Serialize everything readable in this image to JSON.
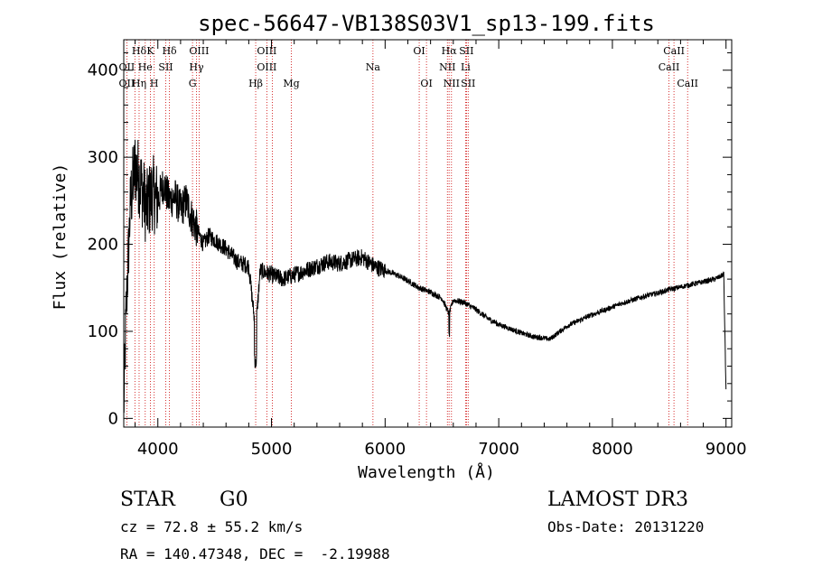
{
  "chart_data": {
    "type": "line",
    "title": "spec-56647-VB138S03V1_sp13-199.fits",
    "xlabel": "Wavelength (Å)",
    "ylabel": "Flux (relative)",
    "xlim": [
      3700,
      9050
    ],
    "ylim": [
      -10,
      435
    ],
    "xticks": [
      4000,
      5000,
      6000,
      7000,
      8000,
      9000
    ],
    "yticks": [
      0,
      100,
      200,
      300,
      400
    ],
    "xtick_labels": [
      "4000",
      "5000",
      "6000",
      "7000",
      "8000",
      "9000"
    ],
    "ytick_labels": [
      "0",
      "100",
      "200",
      "300",
      "400"
    ],
    "spectrum_anchors": {
      "x": [
        3700,
        3720,
        3760,
        3800,
        3850,
        3900,
        3950,
        4000,
        4050,
        4100,
        4150,
        4200,
        4250,
        4300,
        4350,
        4400,
        4450,
        4500,
        4600,
        4700,
        4800,
        4861,
        4900,
        5000,
        5100,
        5200,
        5300,
        5400,
        5500,
        5600,
        5700,
        5800,
        5900,
        6000,
        6100,
        6200,
        6300,
        6400,
        6500,
        6563,
        6600,
        6700,
        6800,
        6900,
        7000,
        7100,
        7200,
        7300,
        7400,
        7450,
        7500,
        7600,
        7700,
        7800,
        7900,
        8000,
        8100,
        8200,
        8300,
        8400,
        8500,
        8600,
        8700,
        8800,
        8900,
        8950,
        8980,
        9000
      ],
      "y": [
        10,
        120,
        250,
        290,
        270,
        240,
        260,
        250,
        270,
        250,
        255,
        240,
        250,
        230,
        215,
        200,
        210,
        205,
        195,
        180,
        175,
        100,
        170,
        165,
        160,
        165,
        170,
        175,
        180,
        178,
        182,
        185,
        175,
        170,
        165,
        158,
        150,
        145,
        138,
        120,
        136,
        133,
        125,
        115,
        108,
        103,
        98,
        94,
        92,
        91,
        96,
        106,
        112,
        118,
        123,
        128,
        133,
        137,
        141,
        144,
        148,
        151,
        154,
        157,
        160,
        163,
        166,
        30
      ]
    },
    "line_markers": [
      {
        "label": "Hδ",
        "x": 3835,
        "row": 0
      },
      {
        "label": "K",
        "x": 3934,
        "row": 0
      },
      {
        "label": "Hδ",
        "x": 4102,
        "row": 0
      },
      {
        "label": "OIII",
        "x": 4363,
        "row": 0
      },
      {
        "label": "OIII",
        "x": 4959,
        "row": 0
      },
      {
        "label": "OI",
        "x": 6300,
        "row": 0
      },
      {
        "label": "Hα",
        "x": 6563,
        "row": 0
      },
      {
        "label": "SII",
        "x": 6716,
        "row": 0
      },
      {
        "label": "CaII",
        "x": 8542,
        "row": 0
      },
      {
        "label": "OII",
        "x": 3727,
        "row": 1
      },
      {
        "label": "He",
        "x": 3889,
        "row": 1
      },
      {
        "label": "SII",
        "x": 4070,
        "row": 1
      },
      {
        "label": "Hγ",
        "x": 4340,
        "row": 1
      },
      {
        "label": "OIII",
        "x": 4959,
        "row": 1
      },
      {
        "label": "Na",
        "x": 5893,
        "row": 1
      },
      {
        "label": "NII",
        "x": 6548,
        "row": 1
      },
      {
        "label": "Li",
        "x": 6708,
        "row": 1
      },
      {
        "label": "CaII",
        "x": 8498,
        "row": 1
      },
      {
        "label": "OII",
        "x": 3727,
        "row": 2
      },
      {
        "label": "Hη",
        "x": 3835,
        "row": 2
      },
      {
        "label": "H",
        "x": 3968,
        "row": 2
      },
      {
        "label": "G",
        "x": 4305,
        "row": 2
      },
      {
        "label": "Hβ",
        "x": 4861,
        "row": 2
      },
      {
        "label": "Mg",
        "x": 5175,
        "row": 2
      },
      {
        "label": "OI",
        "x": 6364,
        "row": 2
      },
      {
        "label": "NII",
        "x": 6584,
        "row": 2
      },
      {
        "label": "SII",
        "x": 6731,
        "row": 2
      },
      {
        "label": "CaII",
        "x": 8662,
        "row": 2
      }
    ],
    "marker_positions": [
      3727,
      3798,
      3835,
      3889,
      3934,
      3968,
      4070,
      4102,
      4305,
      4340,
      4363,
      4861,
      4959,
      5007,
      5175,
      5893,
      6300,
      6364,
      6548,
      6563,
      6584,
      6708,
      6716,
      6731,
      8498,
      8542,
      8662
    ]
  },
  "info": {
    "object_class": "STAR",
    "subclass": "G0",
    "survey": "LAMOST DR3",
    "redshift": "cz = 72.8 ± 55.2 km/s",
    "obs_date": "Obs-Date: 20131220",
    "coordinates": "RA = 140.47348, DEC =  -2.19988"
  },
  "colors": {
    "marker_line": "#cc0000",
    "spectrum": "#000000"
  }
}
